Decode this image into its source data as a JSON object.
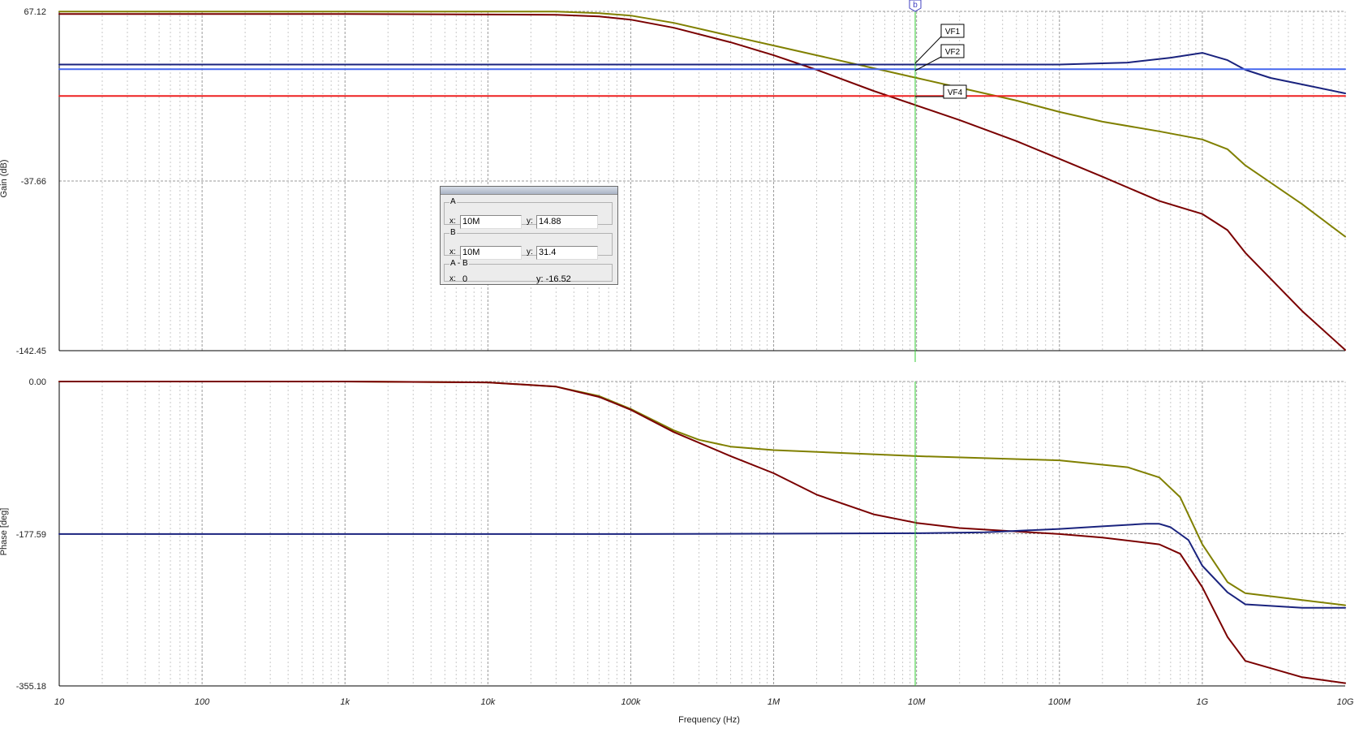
{
  "chart_data": [
    {
      "type": "line",
      "name": "gain",
      "ylabel": "Gain (dB)",
      "xlabel": "",
      "xscale": "log",
      "xlim": [
        10,
        10000000000
      ],
      "ylim": [
        -142.45,
        67.12
      ],
      "grid": true,
      "y_ticks": [
        "67.12",
        "-37.66",
        "-142.45"
      ],
      "series": [
        {
          "color": "#808000",
          "x": [
            10,
            1000,
            30000,
            60000,
            100000,
            200000,
            500000,
            1000000,
            2000000,
            5000000,
            10000000,
            20000000,
            50000000,
            100000000,
            200000000,
            500000000,
            1000000000,
            1500000000,
            2000000000,
            5000000000,
            10000000000
          ],
          "y": [
            67,
            67,
            67,
            66,
            64.5,
            60,
            52,
            46,
            40,
            32,
            26,
            20,
            12,
            5,
            -1,
            -7,
            -12,
            -18,
            -28,
            -52,
            -72
          ]
        },
        {
          "color": "#7a0000",
          "x": [
            10,
            1000,
            30000,
            60000,
            100000,
            200000,
            500000,
            1000000,
            2000000,
            5000000,
            10000000,
            20000000,
            50000000,
            100000000,
            200000000,
            500000000,
            1000000000,
            1500000000,
            2000000000,
            5000000000,
            10000000000
          ],
          "y": [
            65.5,
            65.5,
            65,
            64,
            62,
            57,
            48,
            40,
            31,
            18,
            9,
            0,
            -13,
            -24,
            -35,
            -50,
            -58,
            -68,
            -82,
            -118,
            -142
          ]
        },
        {
          "color": "#1a237e",
          "x": [
            10,
            1000,
            100000,
            1000000,
            10000000,
            100000000,
            300000000,
            600000000,
            1000000000,
            1500000000,
            2000000000,
            3000000000,
            5000000000,
            10000000000
          ],
          "y": [
            34.3,
            34.3,
            34.3,
            34.3,
            34.3,
            34.3,
            35.5,
            38.5,
            41.5,
            37,
            31,
            26,
            22,
            16.5
          ]
        },
        {
          "color": "#4466ee",
          "x": [
            10,
            10000000000
          ],
          "y": [
            31.4,
            31.4
          ]
        },
        {
          "color": "#ee2222",
          "x": [
            10,
            10000000000
          ],
          "y": [
            14.88,
            14.88
          ]
        }
      ],
      "markers": [
        "VF1",
        "VF2",
        "VF4"
      ]
    },
    {
      "type": "line",
      "name": "phase",
      "ylabel": "Phase [deg]",
      "xlabel": "Frequency (Hz)",
      "xscale": "log",
      "xlim": [
        10,
        10000000000
      ],
      "ylim": [
        -355.18,
        0
      ],
      "grid": true,
      "y_ticks": [
        "0.00",
        "-177.59",
        "-355.18"
      ],
      "x_ticks": [
        "10",
        "100",
        "1k",
        "10k",
        "100k",
        "1M",
        "10M",
        "100M",
        "1G",
        "10G"
      ],
      "series": [
        {
          "color": "#808000",
          "x": [
            10,
            1000,
            10000,
            30000,
            60000,
            100000,
            200000,
            300000,
            500000,
            1000000,
            10000000,
            100000000,
            300000000,
            500000000,
            700000000,
            1000000000,
            1500000000,
            2000000000,
            5000000000,
            10000000000
          ],
          "y": [
            0,
            0,
            -1,
            -6,
            -17,
            -32,
            -57,
            -68,
            -76,
            -80,
            -87,
            -92,
            -100,
            -112,
            -135,
            -190,
            -234,
            -247,
            -255,
            -261
          ]
        },
        {
          "color": "#7a0000",
          "x": [
            10,
            1000,
            10000,
            30000,
            60000,
            100000,
            200000,
            500000,
            1000000,
            2000000,
            5000000,
            10000000,
            20000000,
            50000000,
            100000000,
            200000000,
            500000000,
            700000000,
            1000000000,
            1500000000,
            2000000000,
            5000000000,
            10000000000
          ],
          "y": [
            0,
            0,
            -1,
            -6,
            -18,
            -33,
            -59,
            -87,
            -107,
            -132,
            -155,
            -165,
            -171,
            -175,
            -178,
            -182,
            -190,
            -201,
            -240,
            -298,
            -326,
            -345,
            -352
          ]
        },
        {
          "color": "#1a237e",
          "x": [
            10,
            1000,
            100000,
            10000000,
            30000000,
            100000000,
            200000000,
            400000000,
            500000000,
            600000000,
            800000000,
            1000000000,
            1500000000,
            2000000000,
            5000000000,
            10000000000
          ],
          "y": [
            -178,
            -178,
            -178,
            -177,
            -176,
            -172,
            -169,
            -166,
            -166,
            -170,
            -185,
            -215,
            -246,
            -260,
            -264,
            -264
          ]
        }
      ]
    }
  ],
  "cursor_panel": {
    "a_label": "A",
    "b_label": "B",
    "diff_label": "A - B",
    "x_label": "x:",
    "y_label": "y:",
    "a_x": "10M",
    "a_y": "14.88",
    "b_x": "10M",
    "b_y": "31.4",
    "diff_x": "0",
    "diff_y_text": "y: -16.52"
  },
  "cursor_tag": "b"
}
